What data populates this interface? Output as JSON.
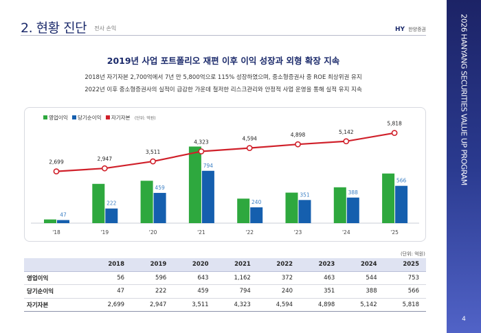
{
  "header": {
    "title": "2. 현황 진단",
    "subtitle": "전사 손익",
    "logo_mark": "HY",
    "logo_text": "한양증권"
  },
  "sidebar": {
    "title": "2026 HANYANG SECURITIES VALUE UP PROGRAM",
    "page_number": "4"
  },
  "headline": "2019년 사업 포트폴리오 재편 이후 이익 성장과 외형 확장 지속",
  "description": [
    "2018년 자기자본 2,700억에서 7년 만 5,800억으로 115% 성장하였으며, 중소형증권사 중 ROE 최상위권 유지",
    "2022년 이후 중소형증권사의 실적이 급감한 가운데 철저한 리스크관리와 안정적 사업 운영을 통해 실적 유지 지속"
  ],
  "legend": {
    "operating": "영업이익",
    "net": "당기순이익",
    "equity": "자기자본",
    "unit": "(단위: 억원)"
  },
  "colors": {
    "operating": "#2ea83e",
    "net": "#155fae",
    "equity": "#d0202a",
    "net_label": "#3b7fc4"
  },
  "chart_data": {
    "type": "bar",
    "categories": [
      "'18",
      "'19",
      "'20",
      "'21",
      "'22",
      "'23",
      "'24",
      "'25"
    ],
    "series": [
      {
        "name": "영업이익",
        "type": "bar",
        "values": [
          56,
          596,
          643,
          1162,
          372,
          463,
          544,
          753
        ]
      },
      {
        "name": "당기순이익",
        "type": "bar",
        "values": [
          47,
          222,
          459,
          794,
          240,
          351,
          388,
          566
        ]
      },
      {
        "name": "자기자본",
        "type": "line",
        "values": [
          2699,
          2947,
          3511,
          4323,
          4594,
          4898,
          5142,
          5818
        ]
      }
    ],
    "bar_ylim": [
      0,
      1250
    ],
    "line_ylim": [
      -1500,
      6300
    ],
    "net_labels": [
      "47",
      "222",
      "459",
      "794",
      "240",
      "351",
      "388",
      "566"
    ],
    "equity_labels": [
      "2,699",
      "2,947",
      "3,511",
      "4,323",
      "4,594",
      "4,898",
      "5,142",
      "5,818"
    ],
    "unit": "(단위: 억원)"
  },
  "table": {
    "unit": "(단위: 억원)",
    "years": [
      "2018",
      "2019",
      "2020",
      "2021",
      "2022",
      "2023",
      "2024",
      "2025"
    ],
    "rows": [
      {
        "label": "영업이익",
        "values": [
          "56",
          "596",
          "643",
          "1,162",
          "372",
          "463",
          "544",
          "753"
        ]
      },
      {
        "label": "당기순이익",
        "values": [
          "47",
          "222",
          "459",
          "794",
          "240",
          "351",
          "388",
          "566"
        ]
      },
      {
        "label": "자기자본",
        "values": [
          "2,699",
          "2,947",
          "3,511",
          "4,323",
          "4,594",
          "4,898",
          "5,142",
          "5,818"
        ]
      }
    ]
  }
}
